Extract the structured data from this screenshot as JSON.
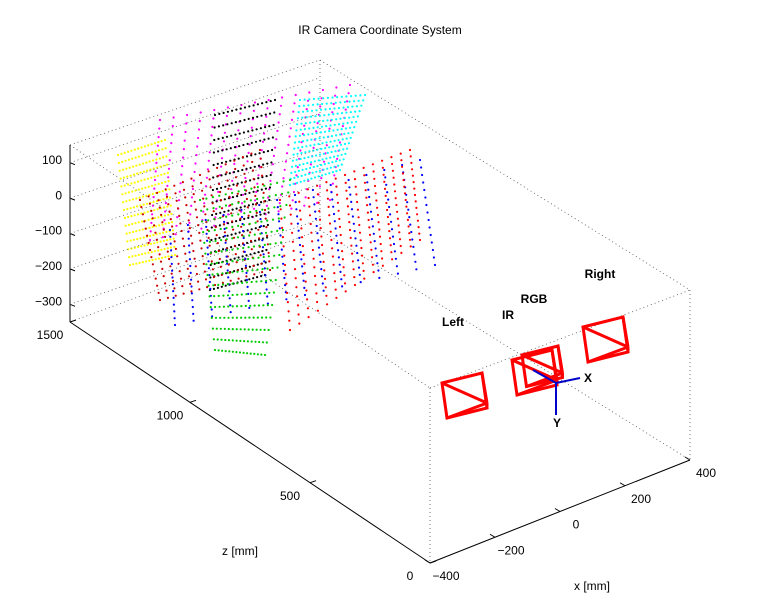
{
  "chart_data": {
    "type": "scatter3d",
    "title": "IR Camera Coordinate System",
    "xlabel": "x [mm]",
    "zlabel": "z [mm]",
    "xlim": [
      -400,
      400
    ],
    "xticks": [
      {
        "value": -400,
        "label": "−400"
      },
      {
        "value": -200,
        "label": "−200"
      },
      0,
      200,
      400
    ],
    "ylim": [
      -350,
      150
    ],
    "yticks": [
      100,
      0,
      {
        "value": -100,
        "label": "−100"
      },
      {
        "value": -200,
        "label": "−200"
      },
      {
        "value": -300,
        "label": "−300"
      }
    ],
    "zlim": [
      0,
      1500
    ],
    "zticks": [
      0,
      500,
      1000,
      1500
    ],
    "camera_labels": [
      "Left",
      "IR",
      "RGB",
      "Right"
    ],
    "axis_labels": [
      "X",
      "Y"
    ]
  }
}
